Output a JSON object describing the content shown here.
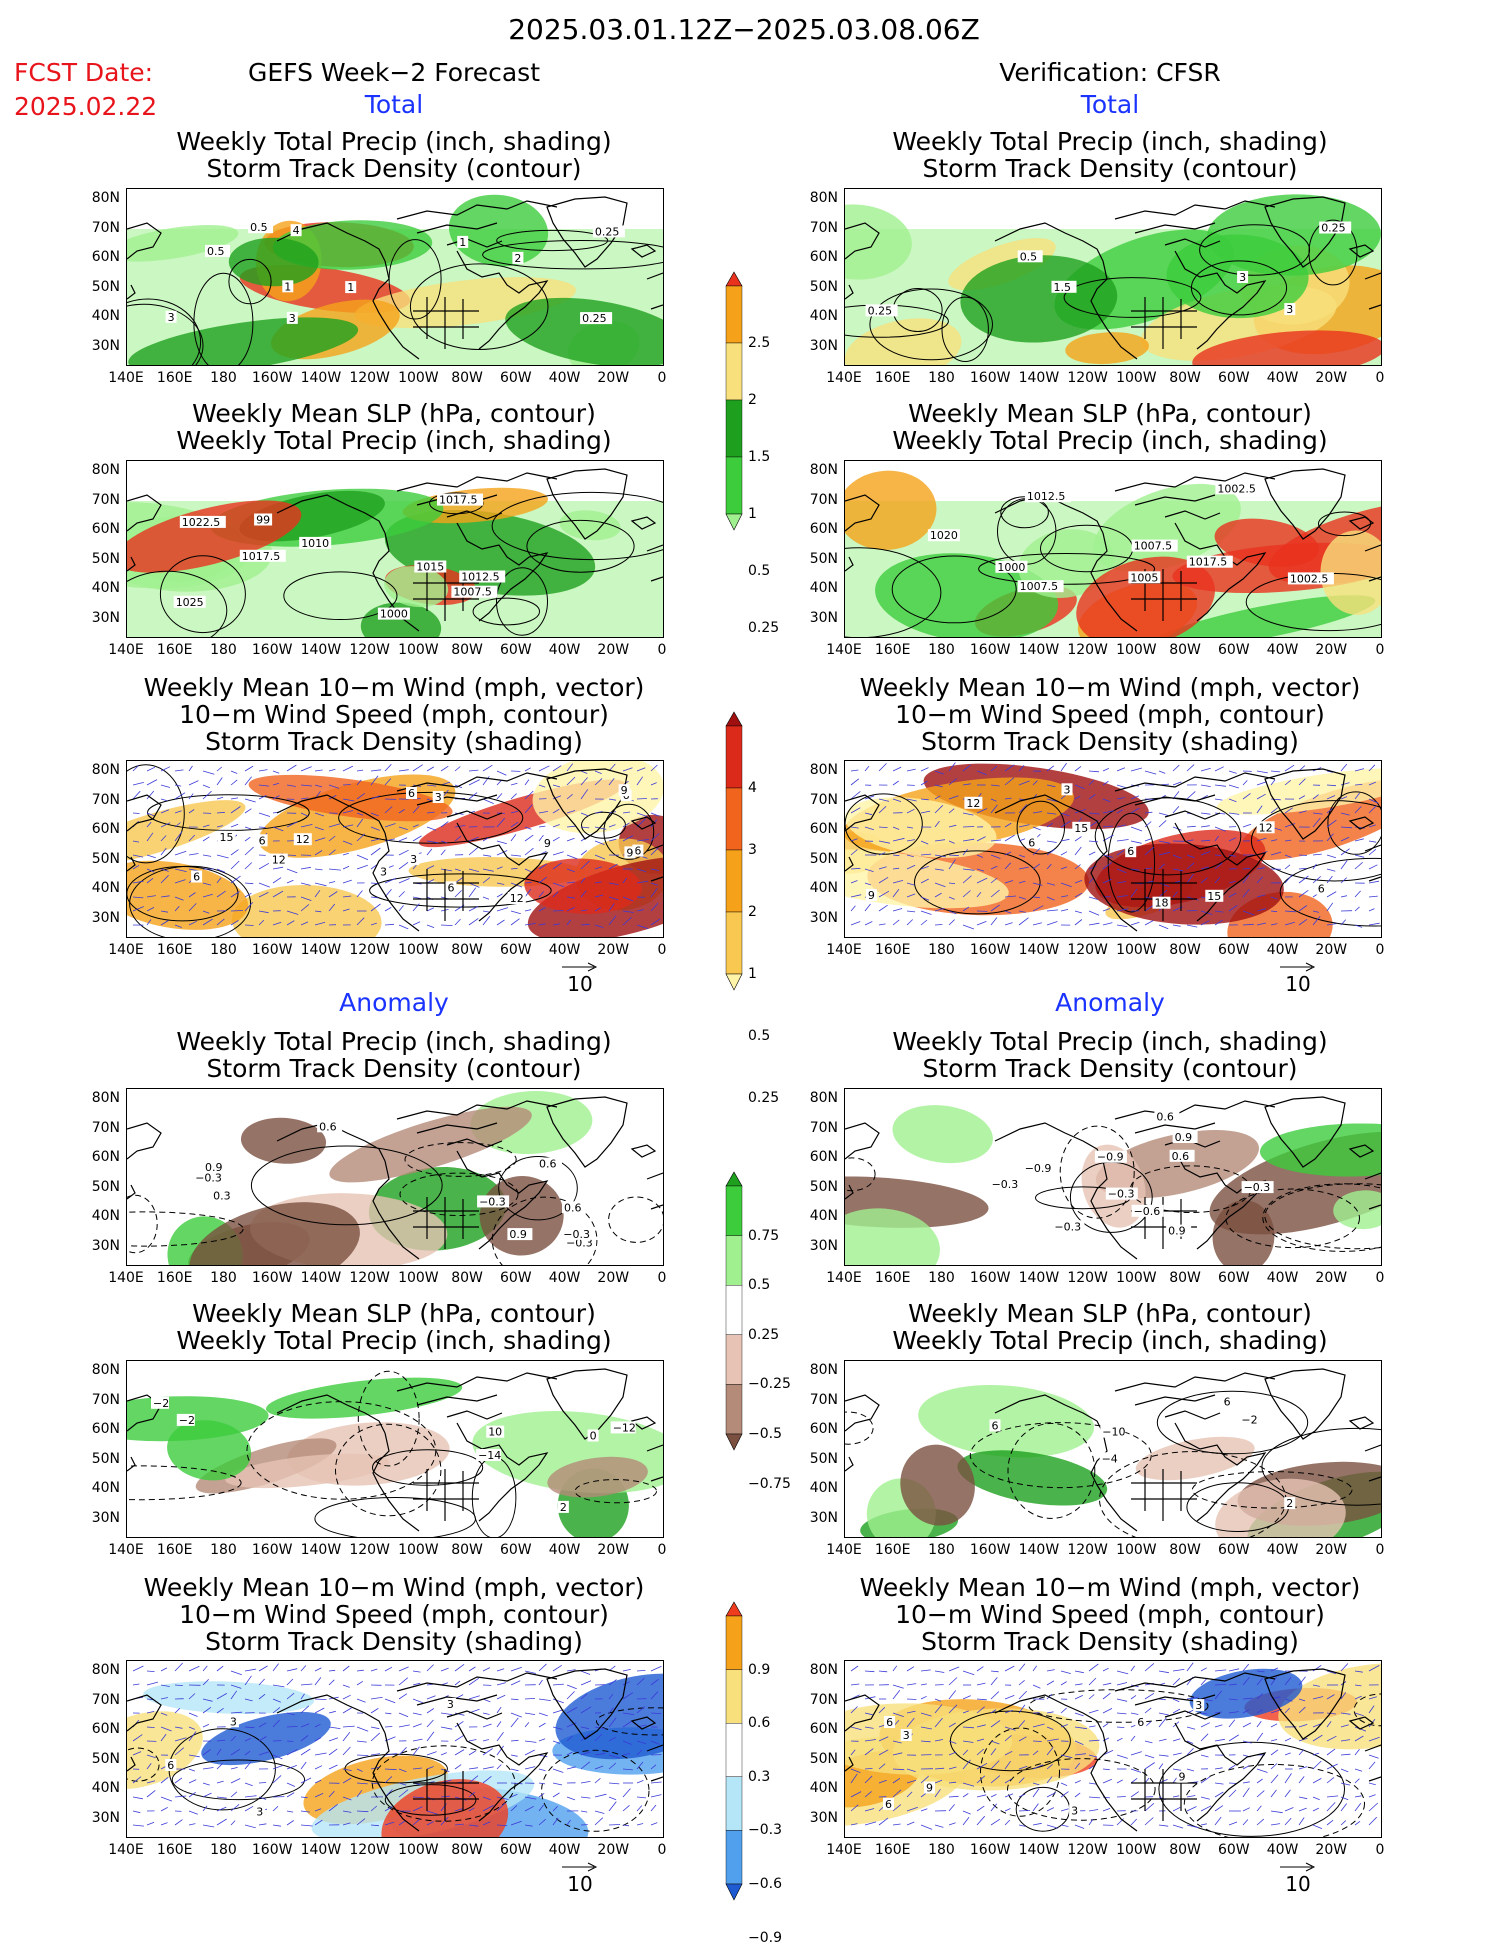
{
  "header": {
    "title": "2025.03.01.12Z−2025.03.08.06Z",
    "fcst_label": "FCST Date:",
    "fcst_date": "2025.02.22",
    "left_title": "GEFS Week−2 Forecast",
    "right_title": "Verification: CFSR"
  },
  "sections": {
    "total": "Total",
    "anomaly": "Anomaly"
  },
  "panel_titles": {
    "precip_track": [
      "Weekly Total Precip (inch, shading)",
      "Storm Track Density (contour)"
    ],
    "slp_precip": [
      "Weekly Mean SLP (hPa, contour)",
      "Weekly Total Precip (inch, shading)"
    ],
    "wind_track": [
      "Weekly Mean 10−m Wind (mph, vector)",
      "10−m Wind Speed (mph, contour)",
      "Storm Track Density (shading)"
    ]
  },
  "axes": {
    "lat_labels": [
      "80N",
      "70N",
      "60N",
      "50N",
      "40N",
      "30N"
    ],
    "lon_labels": [
      "140E",
      "160E",
      "180",
      "160W",
      "140W",
      "120W",
      "100W",
      "80W",
      "60W",
      "40W",
      "20W",
      "0"
    ]
  },
  "vector_scale": "10",
  "colorbars": {
    "precip_total": {
      "labels": [
        "2.5",
        "2",
        "1.5",
        "1",
        "0.5",
        "0.25"
      ],
      "colors": [
        "#e8321e",
        "#f5a21a",
        "#f8e07c",
        "#1ea01e",
        "#3ccc3c",
        "#a0f090"
      ]
    },
    "track_total": {
      "labels": [
        "4",
        "3",
        "2",
        "1",
        "0.5",
        "0.25"
      ],
      "colors": [
        "#a01010",
        "#dc2a1a",
        "#f0641e",
        "#f5a21a",
        "#f8c850",
        "#fff4a8"
      ]
    },
    "precip_anom": {
      "labels": [
        "0.75",
        "0.5",
        "0.25",
        "−0.25",
        "−0.5",
        "−0.75"
      ],
      "colors": [
        "#1ea01e",
        "#3ccc3c",
        "#a0f090",
        "#ffffff",
        "#e6c3b4",
        "#b48a78",
        "#7a5040"
      ]
    },
    "track_anom": {
      "labels": [
        "0.9",
        "0.6",
        "0.3",
        "−0.3",
        "−0.6",
        "−0.9"
      ],
      "colors": [
        "#f03c1e",
        "#f5a21a",
        "#f8e07c",
        "#ffffff",
        "#b4e6f8",
        "#50a0ee",
        "#1e5ad2"
      ]
    }
  },
  "panels": [
    {
      "id": "fcst-total-precip",
      "labels": [
        "3",
        "1",
        "0.5",
        "0.25",
        "1",
        "0.5",
        "0.25",
        "2",
        "3",
        "4",
        "1"
      ]
    },
    {
      "id": "fcst-total-slp",
      "labels": [
        "1010",
        "1007.5",
        "1025",
        "1022.5",
        "1017.5",
        "1000",
        "1017.5",
        "1012.5",
        "1015",
        "99"
      ]
    },
    {
      "id": "fcst-total-wind",
      "labels": [
        "3",
        "6",
        "6",
        "6",
        "9",
        "12",
        "12",
        "6",
        "9",
        "15",
        "9",
        "3",
        "6",
        "6",
        "12",
        "3"
      ]
    },
    {
      "id": "cfsr-total-precip",
      "labels": [
        "3",
        "0.5",
        "0.25",
        "1.5",
        "3",
        "0.25"
      ]
    },
    {
      "id": "cfsr-total-slp",
      "labels": [
        "1020",
        "1017.5",
        "1002.5",
        "1005",
        "1007.5",
        "1000",
        "1002.5",
        "1007.5",
        "1012.5"
      ]
    },
    {
      "id": "cfsr-total-wind",
      "labels": [
        "3",
        "9",
        "12",
        "15",
        "6",
        "6",
        "15",
        "12",
        "18",
        "6"
      ]
    },
    {
      "id": "fcst-anom-precip",
      "labels": [
        "−0.3",
        "0.6",
        "0.9",
        "−0.3",
        "0.9",
        "0.6",
        "0.3",
        "−0.3",
        "0.6",
        "−0.3"
      ]
    },
    {
      "id": "fcst-anom-slp",
      "labels": [
        "−12",
        "10",
        "−14",
        "−2",
        "0",
        "−2",
        "2"
      ]
    },
    {
      "id": "fcst-anom-wind",
      "labels": [
        "3",
        "6",
        "3",
        "3"
      ]
    },
    {
      "id": "cfsr-anom-precip",
      "labels": [
        "−0.3",
        "−0.3",
        "−0.6",
        "−0.9",
        "−0.9",
        "0.6",
        "−0.3",
        "−0.3",
        "0.9",
        "0.6",
        "0.9"
      ]
    },
    {
      "id": "cfsr-anom-slp",
      "labels": [
        "−2",
        "6",
        "−10",
        "−4",
        "6",
        "2"
      ]
    },
    {
      "id": "cfsr-anom-wind",
      "labels": [
        "6",
        "3",
        "3",
        "9",
        "6",
        "9",
        "3",
        "6"
      ]
    }
  ]
}
